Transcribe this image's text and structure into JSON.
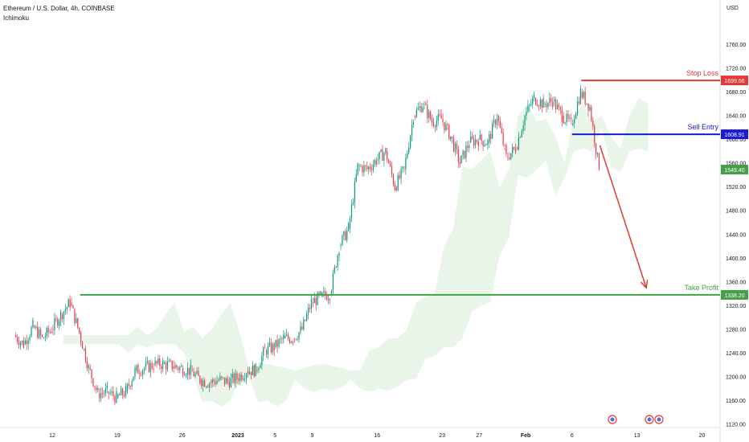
{
  "header": {
    "symbol": "Ethereum / U.S. Dollar, 4h, COINBASE",
    "indicator": "Ichimoku",
    "currency": "USD"
  },
  "colors": {
    "up": "#089981",
    "down": "#f23645",
    "stop": "#e53935",
    "entry": "#1a1adb",
    "target": "#43a047",
    "arrow": "#e53935",
    "cloud_bull": "#e4f3e4",
    "cloud_bear": "#fbe3e3",
    "last": "#43a047"
  },
  "chart_data": {
    "type": "candlestick",
    "ylim": [
      1120,
      1800
    ],
    "y_ticks": [
      "1120.00",
      "1160.00",
      "1200.00",
      "1240.00",
      "1280.00",
      "1320.00",
      "1360.00",
      "1400.00",
      "1440.00",
      "1480.00",
      "1520.00",
      "1560.00",
      "1600.00",
      "1640.00",
      "1680.00",
      "1720.00",
      "1760.00"
    ],
    "x_ticks": [
      "12",
      "19",
      "26",
      "2023",
      "5",
      "9",
      "16",
      "23",
      "27",
      "Feb",
      "6",
      "13",
      "20"
    ],
    "levels": [
      {
        "name": "Stop Loss",
        "value": 1699.66,
        "label": "1699.66",
        "color_key": "stop"
      },
      {
        "name": "Sell Entry",
        "value": 1608.91,
        "label": "1608.91",
        "color_key": "entry"
      },
      {
        "name": "Take Profit",
        "value": 1338.2,
        "label": "1338.20",
        "color_key": "target"
      }
    ],
    "last_price": {
      "value": 1549.4,
      "label": "1549.40"
    },
    "price_path": [
      {
        "x": "Dec 8",
        "y": 1270
      },
      {
        "x": "Dec 9",
        "y": 1255
      },
      {
        "x": "Dec 10",
        "y": 1285
      },
      {
        "x": "Dec 11",
        "y": 1265
      },
      {
        "x": "Dec 12",
        "y": 1280
      },
      {
        "x": "Dec 13",
        "y": 1305
      },
      {
        "x": "Dec 14",
        "y": 1325
      },
      {
        "x": "Dec 15",
        "y": 1275
      },
      {
        "x": "Dec 16",
        "y": 1215
      },
      {
        "x": "Dec 17",
        "y": 1172
      },
      {
        "x": "Dec 18",
        "y": 1175
      },
      {
        "x": "Dec 19",
        "y": 1165
      },
      {
        "x": "Dec 20",
        "y": 1175
      },
      {
        "x": "Dec 21",
        "y": 1210
      },
      {
        "x": "Dec 22",
        "y": 1215
      },
      {
        "x": "Dec 23",
        "y": 1220
      },
      {
        "x": "Dec 24",
        "y": 1222
      },
      {
        "x": "Dec 25",
        "y": 1218
      },
      {
        "x": "Dec 26",
        "y": 1215
      },
      {
        "x": "Dec 27",
        "y": 1210
      },
      {
        "x": "Dec 28",
        "y": 1195
      },
      {
        "x": "Dec 29",
        "y": 1190
      },
      {
        "x": "Dec 30",
        "y": 1195
      },
      {
        "x": "Dec 31",
        "y": 1192
      },
      {
        "x": "Jan 1",
        "y": 1198
      },
      {
        "x": "Jan 2",
        "y": 1210
      },
      {
        "x": "Jan 3",
        "y": 1212
      },
      {
        "x": "Jan 4",
        "y": 1245
      },
      {
        "x": "Jan 5",
        "y": 1250
      },
      {
        "x": "Jan 6",
        "y": 1265
      },
      {
        "x": "Jan 7",
        "y": 1265
      },
      {
        "x": "Jan 8",
        "y": 1280
      },
      {
        "x": "Jan 9",
        "y": 1325
      },
      {
        "x": "Jan 10",
        "y": 1335
      },
      {
        "x": "Jan 11",
        "y": 1340
      },
      {
        "x": "Jan 12",
        "y": 1420
      },
      {
        "x": "Jan 13",
        "y": 1450
      },
      {
        "x": "Jan 14",
        "y": 1555
      },
      {
        "x": "Jan 15",
        "y": 1550
      },
      {
        "x": "Jan 16",
        "y": 1565
      },
      {
        "x": "Jan 17",
        "y": 1580
      },
      {
        "x": "Jan 18",
        "y": 1520
      },
      {
        "x": "Jan 19",
        "y": 1550
      },
      {
        "x": "Jan 20",
        "y": 1640
      },
      {
        "x": "Jan 21",
        "y": 1660
      },
      {
        "x": "Jan 22",
        "y": 1630
      },
      {
        "x": "Jan 23",
        "y": 1635
      },
      {
        "x": "Jan 24",
        "y": 1605
      },
      {
        "x": "Jan 25",
        "y": 1560
      },
      {
        "x": "Jan 26",
        "y": 1595
      },
      {
        "x": "Jan 27",
        "y": 1600
      },
      {
        "x": "Jan 28",
        "y": 1595
      },
      {
        "x": "Jan 29",
        "y": 1640
      },
      {
        "x": "Jan 30",
        "y": 1570
      },
      {
        "x": "Jan 31",
        "y": 1585
      },
      {
        "x": "Feb 1",
        "y": 1640
      },
      {
        "x": "Feb 2",
        "y": 1670
      },
      {
        "x": "Feb 3",
        "y": 1660
      },
      {
        "x": "Feb 4",
        "y": 1665
      },
      {
        "x": "Feb 5",
        "y": 1640
      },
      {
        "x": "Feb 6",
        "y": 1625
      },
      {
        "x": "Feb 7",
        "y": 1680
      },
      {
        "x": "Feb 8",
        "y": 1655
      },
      {
        "x": "Feb 9",
        "y": 1549.4
      }
    ],
    "projection": {
      "from": {
        "x": "Feb 9",
        "y": 1590
      },
      "to": {
        "x": "Feb 14",
        "y": 1350
      }
    }
  }
}
